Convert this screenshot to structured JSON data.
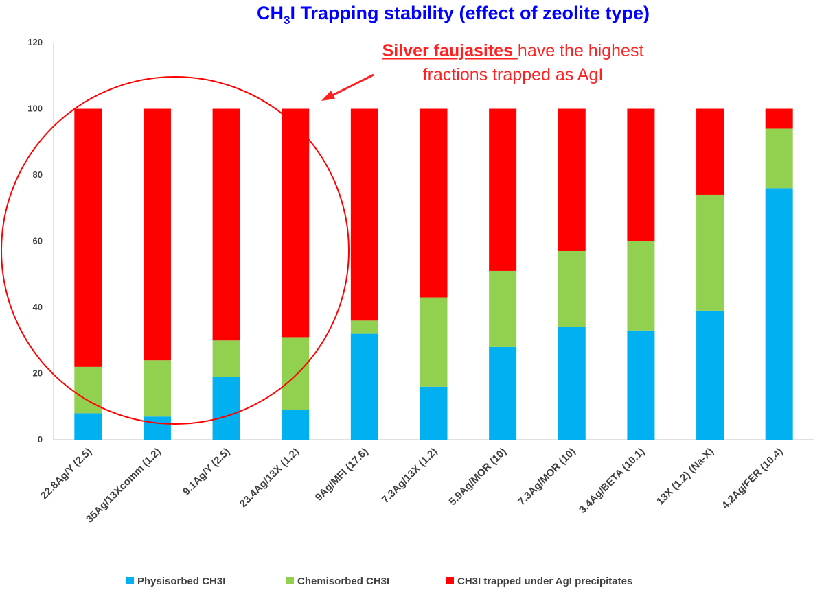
{
  "chart_data": {
    "type": "bar",
    "stacked": true,
    "title": {
      "prefix": "CH",
      "subscript": "3",
      "suffix": "I Trapping stability (effect of zeolite type)"
    },
    "categories": [
      "22.8Ag/Y (2.5)",
      "35Ag/13Xcomm (1.2)",
      "9.1Ag/Y (2.5)",
      "23.4Ag/13X (1.2)",
      "9Ag/MFI (17.6)",
      "7.3Ag/13X (1.2)",
      "5.9Ag/MOR (10)",
      "7.3Ag/MOR (10)",
      "3.4Ag/BETA (10.1)",
      "13X (1.2) (Na-X)",
      "4.2Ag/FER (10.4)"
    ],
    "series": [
      {
        "name": "Physisorbed CH3I",
        "color": "#00b0f0",
        "values": [
          8,
          7,
          19,
          9,
          32,
          16,
          28,
          34,
          33,
          39,
          76
        ]
      },
      {
        "name": "Chemisorbed CH3I",
        "color": "#92d050",
        "values": [
          14,
          17,
          11,
          22,
          4,
          27,
          23,
          23,
          27,
          35,
          18
        ]
      },
      {
        "name": "CH3I trapped under AgI precipitates",
        "color": "#ff0000",
        "values": [
          78,
          76,
          70,
          69,
          64,
          57,
          49,
          43,
          40,
          26,
          6
        ]
      }
    ],
    "yticks": [
      0,
      20,
      40,
      60,
      80,
      100,
      120
    ],
    "ylim": [
      0,
      120
    ],
    "legend_position": "bottom",
    "grid": false,
    "annotation": {
      "emphasis": "Silver faujasites ",
      "line1_rest": "have the highest",
      "line2": "fractions trapped as  AgI",
      "color": "#ff2020"
    },
    "highlight_circle": {
      "color": "#ff0000",
      "covers_categories": [
        "22.8Ag/Y (2.5)",
        "35Ag/13Xcomm (1.2)",
        "9.1Ag/Y (2.5)",
        "23.4Ag/13X (1.2)"
      ]
    },
    "title_color": "#0000ff"
  }
}
